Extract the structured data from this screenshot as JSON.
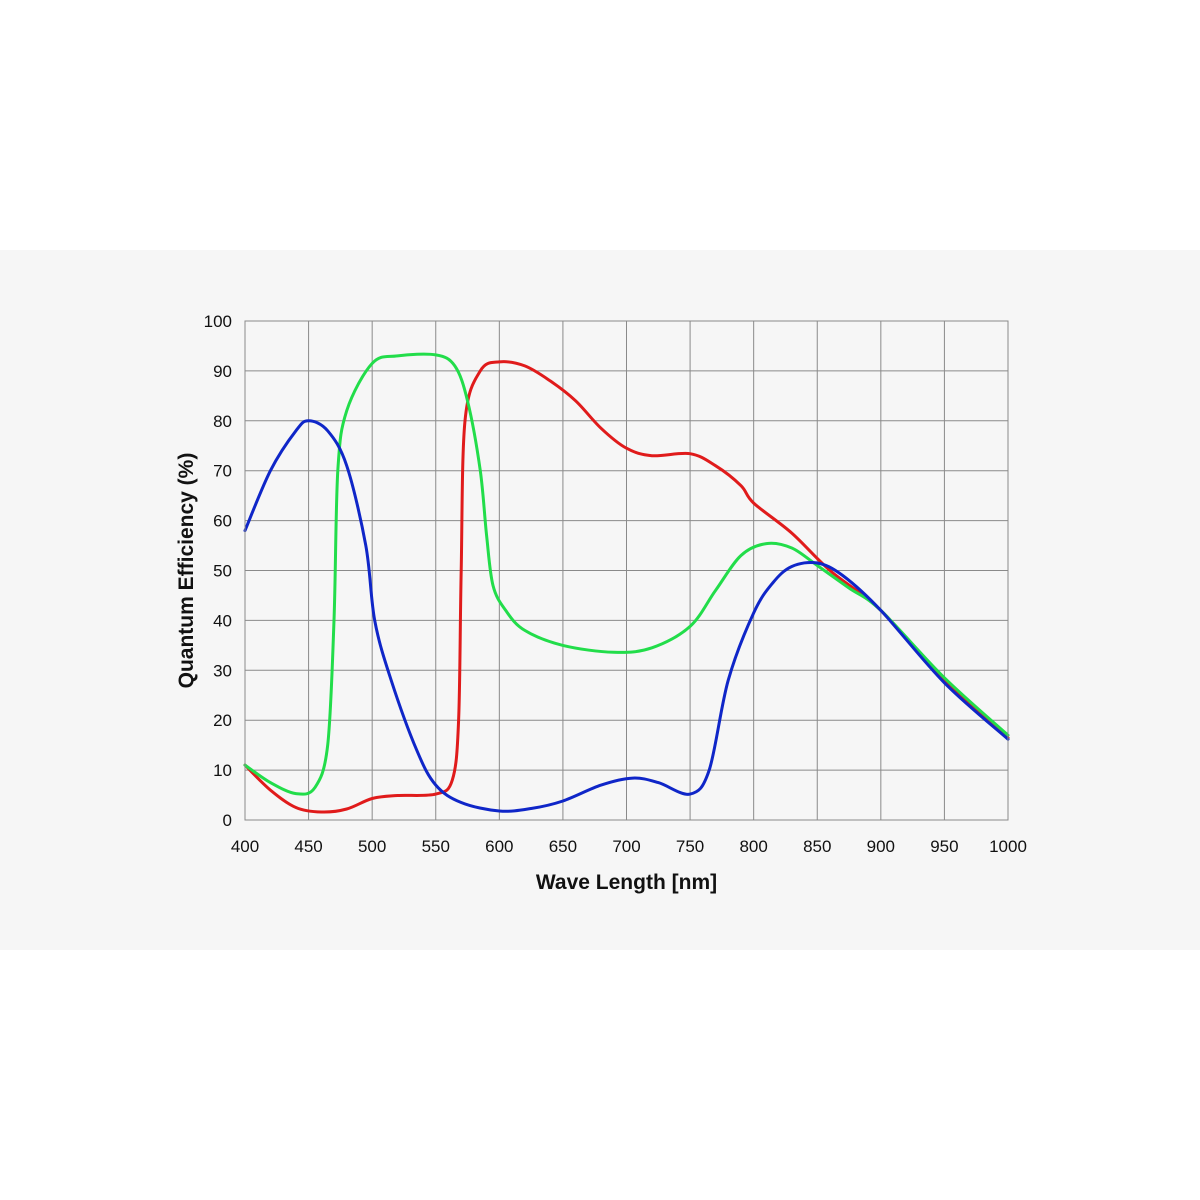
{
  "chart_data": {
    "type": "line",
    "title": "",
    "xlabel": "Wave Length [nm]",
    "ylabel": "Quantum Efficiency  (%)",
    "xlim": [
      400,
      1000
    ],
    "ylim": [
      0,
      100
    ],
    "xticks": [
      400,
      450,
      500,
      550,
      600,
      650,
      700,
      750,
      800,
      850,
      900,
      950,
      1000
    ],
    "yticks": [
      0,
      10,
      20,
      30,
      40,
      50,
      60,
      70,
      80,
      90,
      100
    ],
    "grid": true,
    "legend": "none",
    "series": [
      {
        "color": "#e01b1b",
        "points": [
          [
            400,
            11
          ],
          [
            420,
            6
          ],
          [
            440,
            2.5
          ],
          [
            460,
            1.6
          ],
          [
            480,
            2.2
          ],
          [
            500,
            4.3
          ],
          [
            520,
            4.9
          ],
          [
            550,
            5.2
          ],
          [
            563,
            8
          ],
          [
            568,
            20
          ],
          [
            570,
            50
          ],
          [
            573,
            80
          ],
          [
            585,
            90
          ],
          [
            600,
            91.8
          ],
          [
            620,
            91
          ],
          [
            640,
            88
          ],
          [
            660,
            84
          ],
          [
            680,
            78.5
          ],
          [
            700,
            74.5
          ],
          [
            720,
            73
          ],
          [
            750,
            73.4
          ],
          [
            770,
            71
          ],
          [
            790,
            67
          ],
          [
            800,
            63.5
          ],
          [
            830,
            57.5
          ],
          [
            860,
            50
          ],
          [
            900,
            42
          ],
          [
            950,
            28
          ],
          [
            1000,
            16.5
          ]
        ]
      },
      {
        "color": "#22dd4a",
        "points": [
          [
            400,
            11
          ],
          [
            420,
            7.5
          ],
          [
            440,
            5.3
          ],
          [
            455,
            6.5
          ],
          [
            465,
            15
          ],
          [
            470,
            40
          ],
          [
            473,
            70
          ],
          [
            480,
            82
          ],
          [
            500,
            91.5
          ],
          [
            520,
            93
          ],
          [
            550,
            93.2
          ],
          [
            565,
            91
          ],
          [
            575,
            84
          ],
          [
            585,
            70
          ],
          [
            590,
            57
          ],
          [
            595,
            47
          ],
          [
            605,
            42
          ],
          [
            620,
            38
          ],
          [
            650,
            35
          ],
          [
            690,
            33.6
          ],
          [
            720,
            34.5
          ],
          [
            750,
            38.8
          ],
          [
            770,
            46
          ],
          [
            790,
            53
          ],
          [
            810,
            55.4
          ],
          [
            830,
            54.5
          ],
          [
            850,
            51
          ],
          [
            875,
            46.5
          ],
          [
            900,
            42
          ],
          [
            950,
            28.5
          ],
          [
            1000,
            17
          ]
        ]
      },
      {
        "color": "#0f26c8",
        "points": [
          [
            400,
            58
          ],
          [
            420,
            70
          ],
          [
            440,
            78
          ],
          [
            450,
            80
          ],
          [
            465,
            78
          ],
          [
            480,
            71
          ],
          [
            495,
            55
          ],
          [
            502,
            40
          ],
          [
            515,
            28
          ],
          [
            535,
            14
          ],
          [
            550,
            7
          ],
          [
            570,
            3.5
          ],
          [
            600,
            1.8
          ],
          [
            625,
            2.3
          ],
          [
            650,
            3.8
          ],
          [
            680,
            7
          ],
          [
            705,
            8.4
          ],
          [
            725,
            7.5
          ],
          [
            750,
            5.2
          ],
          [
            765,
            10
          ],
          [
            780,
            28
          ],
          [
            800,
            41.5
          ],
          [
            815,
            47.5
          ],
          [
            830,
            50.8
          ],
          [
            850,
            51.5
          ],
          [
            870,
            49
          ],
          [
            900,
            42
          ],
          [
            950,
            27.5
          ],
          [
            1000,
            16.2
          ]
        ]
      }
    ]
  }
}
